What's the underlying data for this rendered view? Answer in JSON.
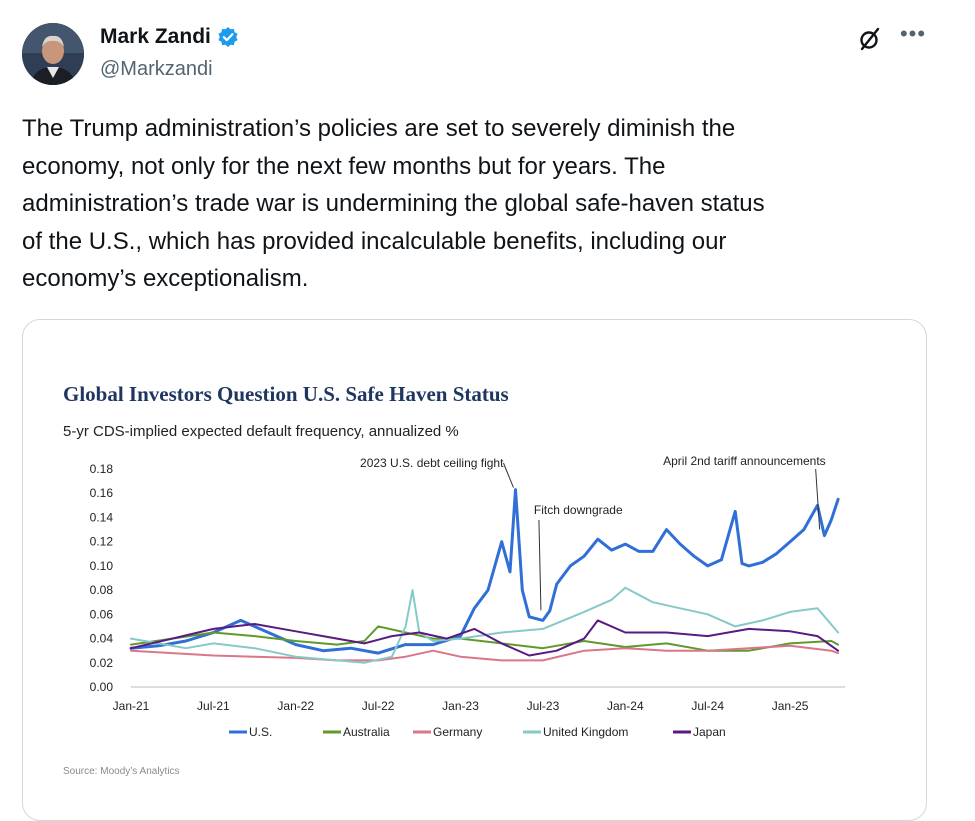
{
  "author": {
    "name": "Mark Zandi",
    "handle": "@Markzandi"
  },
  "tweet": {
    "lines": [
      "The Trump administration’s policies are set to severely diminish the",
      "economy, not only for the next few months but for years. The",
      "administration’s trade war is undermining the global safe-haven status",
      "of the U.S., which has provided incalculable benefits, including our",
      "economy’s exceptionalism."
    ]
  },
  "media": {
    "source": "Source: Moody’s Analytics"
  },
  "colors": {
    "us": "#2f6fd6",
    "australia": "#5f9a2a",
    "germany": "#d9768a",
    "uk": "#86c9c9",
    "japan": "#5a1a82",
    "title": "#1f3760",
    "verified": "#1d9bf0"
  },
  "chart_data": {
    "type": "line",
    "title": "Global Investors Question U.S. Safe Haven Status",
    "subtitle": "5-yr CDS-implied expected default frequency, annualized %",
    "ylim": [
      0,
      0.18
    ],
    "yticks": [
      "0.00",
      "0.02",
      "0.04",
      "0.06",
      "0.08",
      "0.10",
      "0.12",
      "0.14",
      "0.16",
      "0.18"
    ],
    "xlim": [
      0,
      52
    ],
    "xticks": [
      {
        "label": "Jan-21",
        "x": 0
      },
      {
        "label": "Jul-21",
        "x": 6
      },
      {
        "label": "Jan-22",
        "x": 12
      },
      {
        "label": "Jul-22",
        "x": 18
      },
      {
        "label": "Jan-23",
        "x": 24
      },
      {
        "label": "Jul-23",
        "x": 30
      },
      {
        "label": "Jan-24",
        "x": 36
      },
      {
        "label": "Jul-24",
        "x": 42
      },
      {
        "label": "Jan-25",
        "x": 48
      }
    ],
    "annotations": [
      {
        "text": "2023 U.S. debt ceiling fight",
        "x": 28,
        "y": 0.163
      },
      {
        "text": "Fitch downgrade",
        "x": 30,
        "y": 0.06
      },
      {
        "text": "April 2nd tariff announcements",
        "x": 50.3,
        "y": 0.13
      }
    ],
    "series": [
      {
        "name": "U.S.",
        "color": "#2f6fd6",
        "points": [
          [
            0,
            0.032
          ],
          [
            2,
            0.034
          ],
          [
            4,
            0.038
          ],
          [
            6,
            0.045
          ],
          [
            8,
            0.055
          ],
          [
            10,
            0.045
          ],
          [
            12,
            0.035
          ],
          [
            14,
            0.03
          ],
          [
            16,
            0.032
          ],
          [
            18,
            0.028
          ],
          [
            20,
            0.035
          ],
          [
            22,
            0.035
          ],
          [
            24,
            0.042
          ],
          [
            25,
            0.065
          ],
          [
            26,
            0.08
          ],
          [
            27,
            0.12
          ],
          [
            27.6,
            0.095
          ],
          [
            28,
            0.163
          ],
          [
            28.5,
            0.08
          ],
          [
            29,
            0.058
          ],
          [
            30,
            0.055
          ],
          [
            30.5,
            0.063
          ],
          [
            31,
            0.085
          ],
          [
            32,
            0.1
          ],
          [
            33,
            0.108
          ],
          [
            34,
            0.122
          ],
          [
            35,
            0.113
          ],
          [
            36,
            0.118
          ],
          [
            37,
            0.112
          ],
          [
            38,
            0.112
          ],
          [
            39,
            0.13
          ],
          [
            40,
            0.118
          ],
          [
            41,
            0.108
          ],
          [
            42,
            0.1
          ],
          [
            43,
            0.105
          ],
          [
            44,
            0.145
          ],
          [
            44.5,
            0.102
          ],
          [
            45,
            0.1
          ],
          [
            46,
            0.103
          ],
          [
            47,
            0.11
          ],
          [
            48,
            0.12
          ],
          [
            49,
            0.13
          ],
          [
            50,
            0.15
          ],
          [
            50.5,
            0.125
          ],
          [
            51,
            0.138
          ],
          [
            51.5,
            0.155
          ]
        ]
      },
      {
        "name": "Australia",
        "color": "#5f9a2a",
        "points": [
          [
            0,
            0.035
          ],
          [
            3,
            0.04
          ],
          [
            6,
            0.045
          ],
          [
            9,
            0.042
          ],
          [
            12,
            0.038
          ],
          [
            15,
            0.035
          ],
          [
            17,
            0.038
          ],
          [
            18,
            0.05
          ],
          [
            20,
            0.045
          ],
          [
            22,
            0.04
          ],
          [
            24,
            0.04
          ],
          [
            27,
            0.036
          ],
          [
            30,
            0.032
          ],
          [
            33,
            0.038
          ],
          [
            36,
            0.033
          ],
          [
            39,
            0.036
          ],
          [
            42,
            0.03
          ],
          [
            45,
            0.03
          ],
          [
            48,
            0.036
          ],
          [
            51,
            0.038
          ],
          [
            51.5,
            0.035
          ]
        ]
      },
      {
        "name": "Germany",
        "color": "#d9768a",
        "points": [
          [
            0,
            0.03
          ],
          [
            3,
            0.028
          ],
          [
            6,
            0.026
          ],
          [
            9,
            0.025
          ],
          [
            12,
            0.024
          ],
          [
            15,
            0.022
          ],
          [
            18,
            0.022
          ],
          [
            20,
            0.025
          ],
          [
            22,
            0.03
          ],
          [
            24,
            0.025
          ],
          [
            27,
            0.022
          ],
          [
            30,
            0.022
          ],
          [
            33,
            0.03
          ],
          [
            36,
            0.032
          ],
          [
            39,
            0.03
          ],
          [
            42,
            0.03
          ],
          [
            45,
            0.032
          ],
          [
            48,
            0.034
          ],
          [
            51,
            0.03
          ],
          [
            51.5,
            0.028
          ]
        ]
      },
      {
        "name": "United Kingdom",
        "color": "#86c9c9",
        "points": [
          [
            0,
            0.04
          ],
          [
            2,
            0.036
          ],
          [
            4,
            0.032
          ],
          [
            6,
            0.036
          ],
          [
            9,
            0.032
          ],
          [
            12,
            0.025
          ],
          [
            15,
            0.022
          ],
          [
            17,
            0.02
          ],
          [
            19,
            0.025
          ],
          [
            20,
            0.05
          ],
          [
            20.5,
            0.08
          ],
          [
            21,
            0.045
          ],
          [
            22,
            0.038
          ],
          [
            24,
            0.04
          ],
          [
            27,
            0.045
          ],
          [
            30,
            0.048
          ],
          [
            33,
            0.062
          ],
          [
            35,
            0.072
          ],
          [
            36,
            0.082
          ],
          [
            38,
            0.07
          ],
          [
            40,
            0.065
          ],
          [
            42,
            0.06
          ],
          [
            44,
            0.05
          ],
          [
            46,
            0.055
          ],
          [
            48,
            0.062
          ],
          [
            50,
            0.065
          ],
          [
            51.5,
            0.045
          ]
        ]
      },
      {
        "name": "Japan",
        "color": "#5a1a82",
        "points": [
          [
            0,
            0.032
          ],
          [
            3,
            0.04
          ],
          [
            6,
            0.048
          ],
          [
            9,
            0.052
          ],
          [
            12,
            0.046
          ],
          [
            15,
            0.04
          ],
          [
            17,
            0.036
          ],
          [
            19,
            0.042
          ],
          [
            21,
            0.045
          ],
          [
            23,
            0.04
          ],
          [
            25,
            0.048
          ],
          [
            27,
            0.036
          ],
          [
            29,
            0.026
          ],
          [
            31,
            0.03
          ],
          [
            33,
            0.04
          ],
          [
            34,
            0.055
          ],
          [
            36,
            0.045
          ],
          [
            39,
            0.045
          ],
          [
            42,
            0.042
          ],
          [
            45,
            0.048
          ],
          [
            48,
            0.046
          ],
          [
            50,
            0.042
          ],
          [
            51.5,
            0.03
          ]
        ]
      }
    ]
  }
}
